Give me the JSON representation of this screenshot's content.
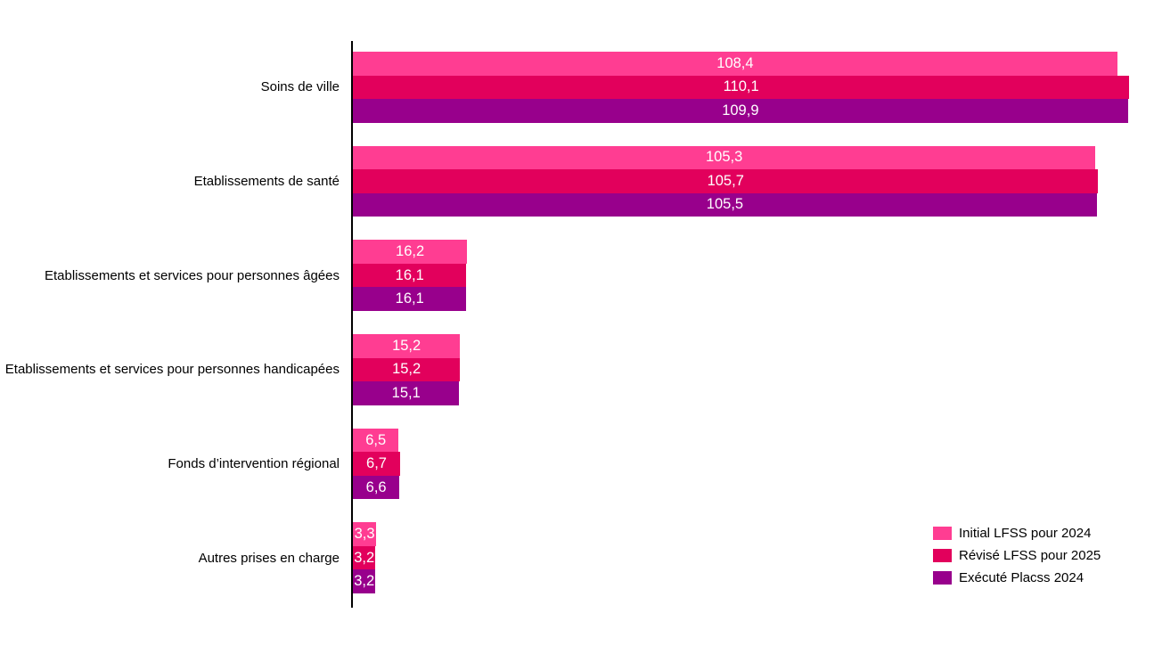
{
  "chart_data": {
    "type": "bar",
    "orientation": "horizontal",
    "title": "",
    "xlabel": "",
    "ylabel": "",
    "grid": false,
    "axis_color": "#000000",
    "background": "#FFFFFF",
    "xlim": [
      0,
      113.6
    ],
    "value_label_position": "center",
    "value_label_color": "#FFFFFF",
    "decimal_separator": ",",
    "legend_position": "bottom-right",
    "categories": [
      "Soins de ville",
      "Etablissements de santé",
      "Etablissements et services pour personnes âgées",
      "Etablissements et services pour personnes handicapées",
      "Fonds d’intervention régional",
      "Autres prises en charge"
    ],
    "series": [
      {
        "name": "Initial LFSS pour 2024",
        "color": "#FF3D92",
        "values": [
          108.4,
          105.3,
          16.2,
          15.2,
          6.5,
          3.3
        ]
      },
      {
        "name": "Révisé LFSS pour 2025",
        "color": "#E2005C",
        "values": [
          110.1,
          105.7,
          16.1,
          15.2,
          6.7,
          3.2
        ]
      },
      {
        "name": "Exécuté Placss 2024",
        "color": "#98008C",
        "values": [
          109.9,
          105.5,
          16.1,
          15.1,
          6.6,
          3.2
        ]
      }
    ]
  }
}
